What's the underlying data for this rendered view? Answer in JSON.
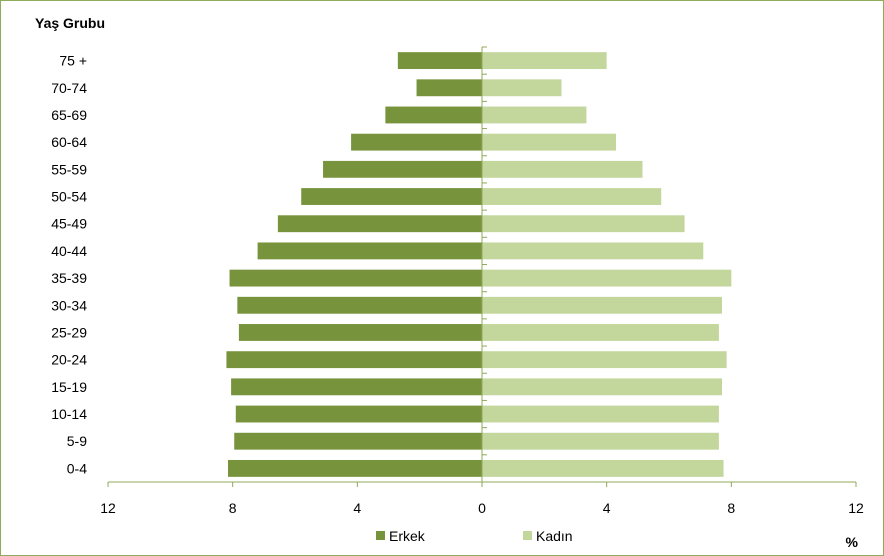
{
  "chart_data": {
    "type": "bar",
    "orientation": "horizontal",
    "layout": "population-pyramid",
    "title": "",
    "ylabel": "Yaş Grubu",
    "xlabel": "%",
    "categories": [
      "0-4",
      "5-9",
      "10-14",
      "15-19",
      "20-24",
      "25-29",
      "30-34",
      "35-39",
      "40-44",
      "45-49",
      "50-54",
      "55-59",
      "60-64",
      "65-69",
      "70-74",
      "75 +"
    ],
    "series": [
      {
        "name": "Erkek",
        "side": "left",
        "color": "#77933c",
        "values": [
          8.15,
          7.95,
          7.9,
          8.05,
          8.2,
          7.8,
          7.85,
          8.1,
          7.2,
          6.55,
          5.8,
          5.1,
          4.2,
          3.1,
          2.1,
          2.7
        ]
      },
      {
        "name": "Kadın",
        "side": "right",
        "color": "#c3d69b",
        "values": [
          7.75,
          7.6,
          7.6,
          7.7,
          7.85,
          7.6,
          7.7,
          8.0,
          7.1,
          6.5,
          5.75,
          5.15,
          4.3,
          3.35,
          2.55,
          4.0
        ]
      }
    ],
    "xlim": [
      -12,
      12
    ],
    "xticks": [
      -12,
      -8,
      -4,
      0,
      4,
      8,
      12
    ],
    "xtick_labels": [
      "12",
      "8",
      "4",
      "0",
      "4",
      "8",
      "12"
    ],
    "grid": false,
    "legend": {
      "position": "bottom",
      "entries": [
        "Erkek",
        "Kadın"
      ]
    },
    "axis_color": "#8faa5a",
    "frame_color": "#8faa5a"
  }
}
